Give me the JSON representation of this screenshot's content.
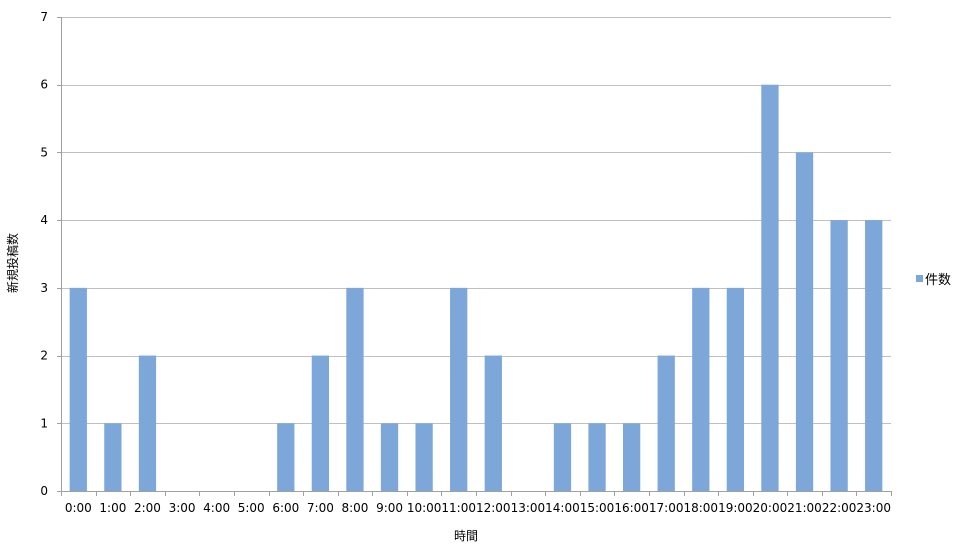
{
  "chart_data": {
    "type": "bar",
    "title": "",
    "xlabel": "時間",
    "ylabel": "新規投稿数",
    "ylim": [
      0,
      7
    ],
    "yticks": [
      "0",
      "1",
      "2",
      "3",
      "4",
      "5",
      "6",
      "7"
    ],
    "grid": true,
    "legend_position": "right",
    "categories": [
      "0:00",
      "1:00",
      "2:00",
      "3:00",
      "4:00",
      "5:00",
      "6:00",
      "7:00",
      "8:00",
      "9:00",
      "10:00",
      "11:00",
      "12:00",
      "13:00",
      "14:00",
      "15:00",
      "16:00",
      "17:00",
      "18:00",
      "19:00",
      "20:00",
      "21:00",
      "22:00",
      "23:00"
    ],
    "series": [
      {
        "name": "件数",
        "color": "#7DA7D9",
        "values": [
          3,
          1,
          2,
          0,
          0,
          0,
          1,
          2,
          3,
          1,
          1,
          3,
          2,
          0,
          1,
          1,
          1,
          2,
          3,
          3,
          6,
          5,
          4,
          4
        ]
      }
    ]
  }
}
